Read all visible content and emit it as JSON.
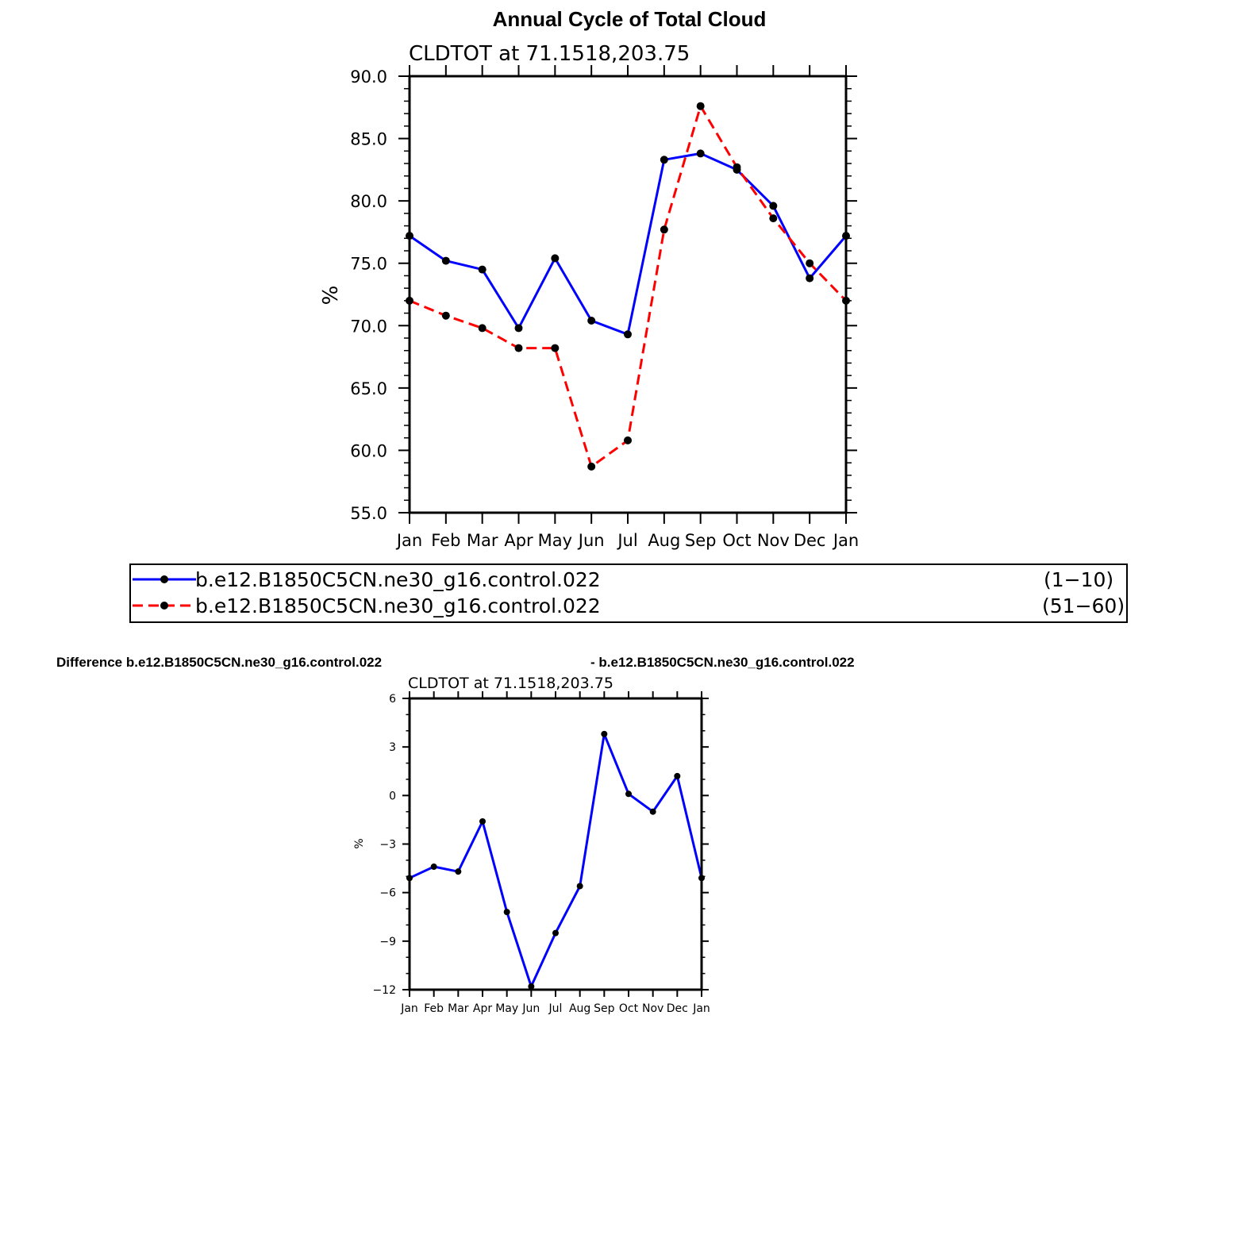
{
  "title": "Annual Cycle of Total Cloud",
  "legend": {
    "entries": [
      {
        "label": "b.e12.B1850C5CN.ne30_g16.control.022",
        "years": "(1−10)",
        "color": "#0000ff",
        "dash": "solid"
      },
      {
        "label": "b.e12.B1850C5CN.ne30_g16.control.022",
        "years": "(51−60)",
        "color": "#ff0000",
        "dash": "dashed"
      }
    ]
  },
  "difference_header": {
    "left": "Difference b.e12.B1850C5CN.ne30_g16.control.022",
    "right": "- b.e12.B1850C5CN.ne30_g16.control.022"
  },
  "chart_data": [
    {
      "type": "line",
      "subtitle": "CLDTOT  at  71.1518,203.75",
      "ylabel": "%",
      "ylim": [
        55,
        90
      ],
      "yticks": [
        "55.0",
        "60.0",
        "65.0",
        "70.0",
        "75.0",
        "80.0",
        "85.0",
        "90.0"
      ],
      "categories": [
        "Jan",
        "Feb",
        "Mar",
        "Apr",
        "May",
        "Jun",
        "Jul",
        "Aug",
        "Sep",
        "Oct",
        "Nov",
        "Dec",
        "Jan"
      ],
      "series": [
        {
          "name": "b.e12.B1850C5CN.ne30_g16.control.022 (1−10)",
          "color": "#0000ff",
          "dash": "solid",
          "values": [
            77.2,
            75.2,
            74.5,
            69.8,
            75.4,
            70.4,
            69.3,
            83.3,
            83.8,
            82.5,
            79.6,
            73.8,
            77.2
          ]
        },
        {
          "name": "b.e12.B1850C5CN.ne30_g16.control.022 (51−60)",
          "color": "#ff0000",
          "dash": "dashed",
          "values": [
            72.0,
            70.8,
            69.8,
            68.2,
            68.2,
            58.7,
            60.8,
            77.7,
            87.6,
            82.7,
            78.6,
            75.0,
            72.0
          ]
        }
      ]
    },
    {
      "type": "line",
      "subtitle": "CLDTOT  at  71.1518,203.75",
      "ylabel": "%",
      "ylim": [
        -12,
        6
      ],
      "yticks": [
        "−12",
        "−9",
        "−6",
        "−3",
        "0",
        "3",
        "6"
      ],
      "categories": [
        "Jan",
        "Feb",
        "Mar",
        "Apr",
        "May",
        "Jun",
        "Jul",
        "Aug",
        "Sep",
        "Oct",
        "Nov",
        "Dec",
        "Jan"
      ],
      "series": [
        {
          "name": "Difference",
          "color": "#0000ff",
          "dash": "solid",
          "values": [
            -5.1,
            -4.4,
            -4.7,
            -1.6,
            -7.2,
            -11.8,
            -8.5,
            -5.6,
            3.8,
            0.1,
            -1.0,
            1.2,
            -5.1
          ]
        }
      ]
    }
  ]
}
